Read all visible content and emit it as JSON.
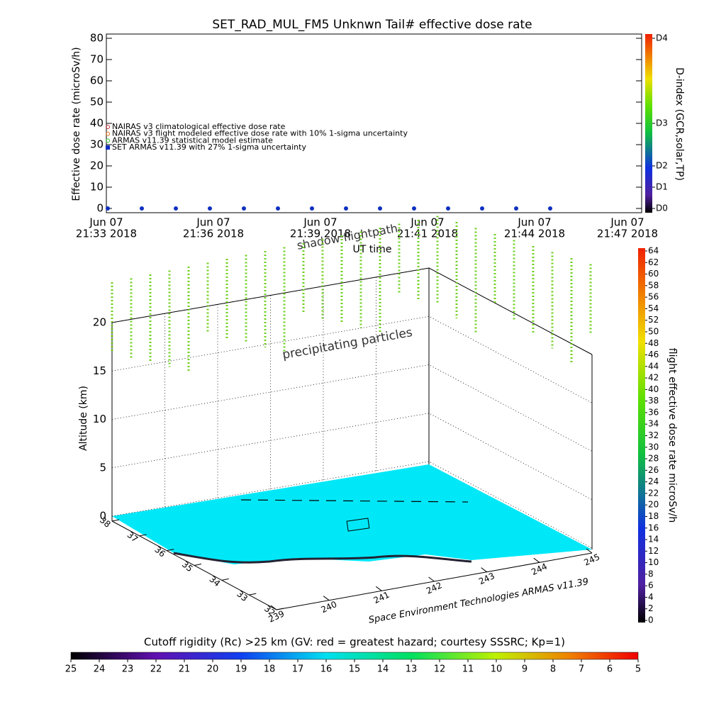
{
  "chart_data": [
    {
      "type": "line",
      "title": "SET_RAD_MUL_FM5 Unknwn Tail#  effective dose rate",
      "ylabel": "Effective dose rate (microSv/h)",
      "xlabel": "UT time",
      "ylim": [
        -2,
        82
      ],
      "yticks": [
        0,
        10,
        20,
        30,
        40,
        50,
        60,
        70,
        80
      ],
      "xtick_labels": [
        [
          "Jun 07",
          "21:33 2018"
        ],
        [
          "Jun 07",
          "21:36 2018"
        ],
        [
          "Jun 07",
          "21:39 2018"
        ],
        [
          "Jun 07",
          "21:41 2018"
        ],
        [
          "Jun 07",
          "21:44 2018"
        ],
        [
          "Jun 07",
          "21:47 2018"
        ]
      ],
      "y2label": "D-index (GCR,solar,TP)",
      "y2lim": [
        -2,
        82
      ],
      "y2ticks": [
        {
          "value": 0,
          "label": "D0"
        },
        {
          "value": 10,
          "label": "D1"
        },
        {
          "value": 20,
          "label": "D2"
        },
        {
          "value": 40,
          "label": "D3"
        },
        {
          "value": 80,
          "label": "D4"
        }
      ],
      "legend_entries": [
        {
          "name": "NAIRAS v3 climatological effective dose rate",
          "color": "#c03030"
        },
        {
          "name": "NAIRAS v3 flight modeled effective dose rate with 10% 1-sigma uncertainty",
          "color": "#e07020"
        },
        {
          "name": "ARMAS v11.39 statistical model estimate",
          "color": "#30c030"
        }
      ],
      "series": [
        {
          "name": "SET ARMAS v11.39 with 27% 1-sigma uncertainty",
          "color": "#1030c0",
          "values": [
            0,
            0,
            0,
            0,
            0,
            0,
            0,
            0,
            0,
            0,
            0,
            0,
            0,
            0
          ]
        }
      ]
    },
    {
      "type": "surface3d",
      "title": "shadow flightpath",
      "annotation": "precipitating particles",
      "zlabel": "Altitude (km)",
      "zlim": [
        0,
        20
      ],
      "zticks": [
        0,
        5,
        10,
        15,
        20
      ],
      "lat_ticks": [
        38,
        37,
        36,
        35,
        34,
        33,
        32
      ],
      "lon_ticks": [
        239,
        240,
        241,
        242,
        243,
        244,
        245
      ],
      "credit": "Space Environment Technologies ARMAS v11.39",
      "colorbar": {
        "label": "flight effective dose rate microSv/h",
        "lim": [
          0,
          64
        ],
        "ticks": [
          0,
          2,
          4,
          6,
          8,
          10,
          12,
          14,
          16,
          18,
          20,
          22,
          24,
          26,
          28,
          30,
          32,
          34,
          36,
          38,
          40,
          42,
          44,
          46,
          48,
          50,
          52,
          54,
          56,
          58,
          60,
          62,
          64
        ]
      }
    },
    {
      "type": "colorbar",
      "title": "Cutoff rigidity (Rc) >25 km (GV: red = greatest hazard; courtesy SSSRC; Kp=1)",
      "lim": [
        25,
        5
      ],
      "ticks": [
        25,
        24,
        23,
        22,
        21,
        20,
        19,
        18,
        17,
        16,
        15,
        14,
        13,
        12,
        11,
        10,
        9,
        8,
        7,
        6,
        5
      ]
    }
  ]
}
